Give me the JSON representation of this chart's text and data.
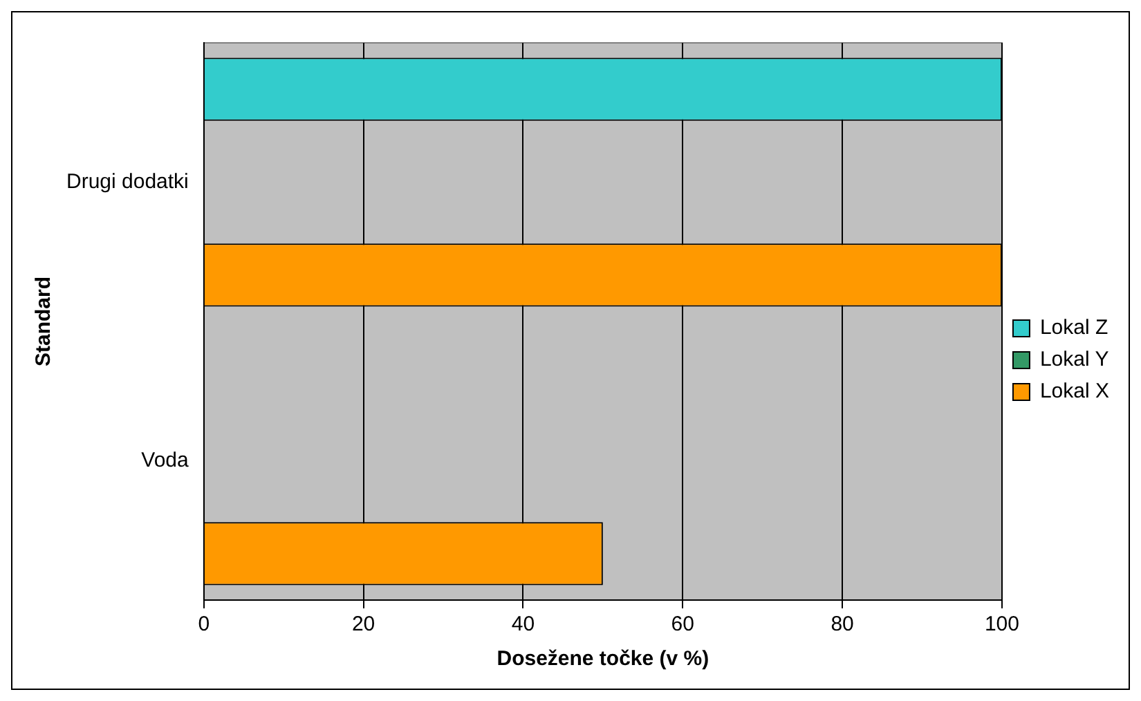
{
  "chart_data": {
    "type": "bar",
    "orientation": "horizontal",
    "xlabel": "Dosežene točke (v %)",
    "ylabel": "Standard",
    "categories": [
      "Drugi dodatki",
      "Voda"
    ],
    "series": [
      {
        "name": "Lokal Z",
        "color": "#33cccc",
        "values": [
          100,
          null
        ]
      },
      {
        "name": "Lokal Y",
        "color": "#339966",
        "values": [
          null,
          null
        ]
      },
      {
        "name": "Lokal X",
        "color": "#ff9900",
        "values": [
          100,
          50
        ]
      }
    ],
    "xlim": [
      0,
      100
    ],
    "xticks": [
      0,
      20,
      40,
      60,
      80,
      100
    ],
    "grid": "x",
    "legend": "right"
  }
}
